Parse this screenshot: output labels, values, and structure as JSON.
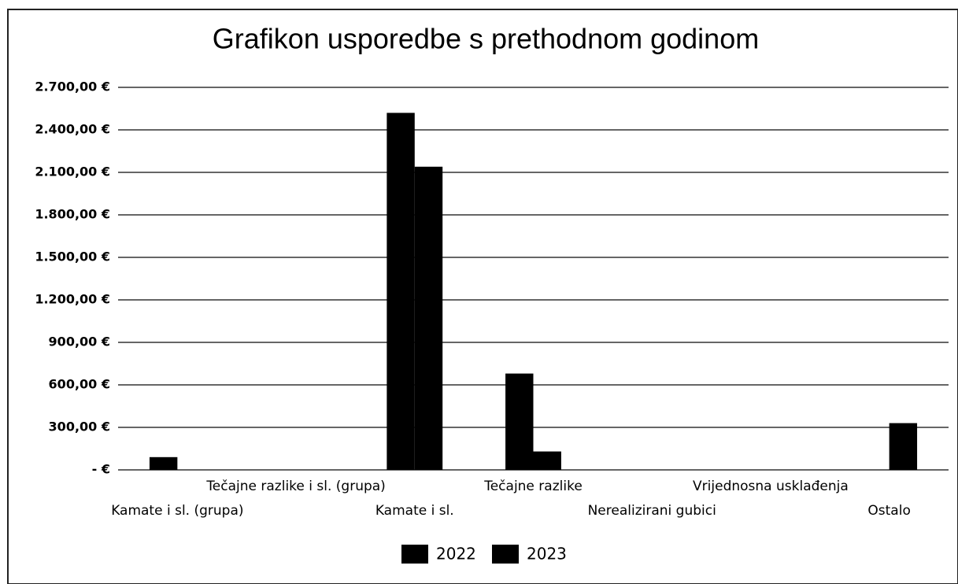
{
  "chart_data": {
    "type": "bar",
    "title": "Grafikon usporedbe s prethodnom godinom",
    "categories": [
      "Kamate i sl. (grupa)",
      "Tečajne razlike i sl. (grupa)",
      "Kamate i sl.",
      "Tečajne razlike",
      "Nerealizirani gubici",
      "Vrijednosna usklađenja",
      "Ostalo"
    ],
    "series": [
      {
        "name": "2022",
        "color": "#000000",
        "values": [
          90,
          0,
          2520,
          680,
          0,
          0,
          0
        ]
      },
      {
        "name": "2023",
        "color": "#000000",
        "values": [
          0,
          0,
          2140,
          130,
          0,
          0,
          330
        ]
      }
    ],
    "ylim": [
      0,
      2700
    ],
    "yticks": [
      {
        "value": 0,
        "label": "-   €"
      },
      {
        "value": 300,
        "label": "300,00 €"
      },
      {
        "value": 600,
        "label": "600,00 €"
      },
      {
        "value": 900,
        "label": "900,00 €"
      },
      {
        "value": 1200,
        "label": "1.200,00 €"
      },
      {
        "value": 1500,
        "label": "1.500,00 €"
      },
      {
        "value": 1800,
        "label": "1.800,00 €"
      },
      {
        "value": 2100,
        "label": "2.100,00 €"
      },
      {
        "value": 2400,
        "label": "2.400,00 €"
      },
      {
        "value": 2700,
        "label": "2.700,00 €"
      }
    ],
    "grid": true,
    "legend": "bottom"
  }
}
